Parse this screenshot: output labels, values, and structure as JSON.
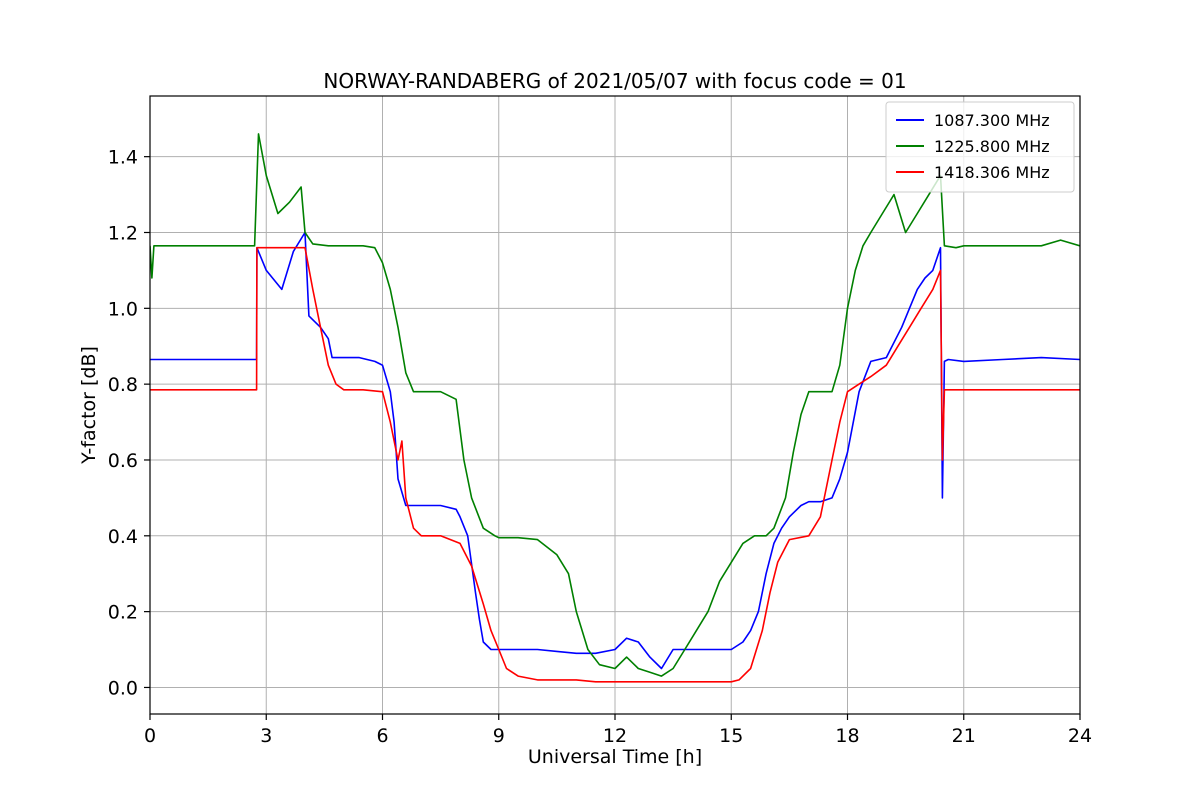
{
  "chart_data": {
    "type": "line",
    "title": "NORWAY-RANDABERG of 2021/05/07 with focus code = 01",
    "xlabel": "Universal Time [h]",
    "ylabel": "Y-factor [dB]",
    "xlim": [
      0,
      24
    ],
    "ylim": [
      -0.07,
      1.56
    ],
    "xticks": [
      0,
      3,
      6,
      9,
      12,
      15,
      18,
      21,
      24
    ],
    "xtick_labels": [
      "0",
      "3",
      "6",
      "9",
      "12",
      "15",
      "18",
      "21",
      "24"
    ],
    "yticks": [
      0.0,
      0.2,
      0.4,
      0.6,
      0.8,
      1.0,
      1.2,
      1.4
    ],
    "ytick_labels": [
      "0.0",
      "0.2",
      "0.4",
      "0.6",
      "0.8",
      "1.0",
      "1.2",
      "1.4"
    ],
    "grid": true,
    "legend_position": "top-right",
    "series": [
      {
        "name": "1087.300 MHz",
        "color": "#0000ff",
        "x": [
          0,
          2.75,
          2.76,
          3.0,
          3.4,
          3.7,
          4.0,
          4.1,
          4.4,
          4.6,
          4.7,
          5.0,
          5.4,
          5.8,
          6.0,
          6.2,
          6.3,
          6.4,
          6.6,
          6.7,
          7.0,
          7.5,
          7.9,
          8.0,
          8.2,
          8.4,
          8.5,
          8.6,
          8.8,
          9.0,
          9.5,
          10.0,
          10.5,
          11.0,
          11.5,
          12.0,
          12.3,
          12.6,
          12.9,
          13.2,
          13.5,
          14.0,
          14.5,
          15.0,
          15.3,
          15.5,
          15.7,
          15.9,
          16.1,
          16.3,
          16.5,
          16.8,
          17.0,
          17.3,
          17.6,
          17.8,
          18.0,
          18.3,
          18.6,
          19.0,
          19.4,
          19.6,
          19.8,
          20.0,
          20.2,
          20.4,
          20.45,
          20.5,
          20.6,
          21.0,
          22.0,
          23.0,
          24.0
        ],
        "y": [
          0.865,
          0.865,
          1.16,
          1.1,
          1.05,
          1.15,
          1.2,
          0.98,
          0.95,
          0.92,
          0.87,
          0.87,
          0.87,
          0.86,
          0.85,
          0.78,
          0.7,
          0.55,
          0.48,
          0.48,
          0.48,
          0.48,
          0.47,
          0.45,
          0.4,
          0.25,
          0.18,
          0.12,
          0.1,
          0.1,
          0.1,
          0.1,
          0.095,
          0.09,
          0.09,
          0.1,
          0.13,
          0.12,
          0.08,
          0.05,
          0.1,
          0.1,
          0.1,
          0.1,
          0.12,
          0.15,
          0.2,
          0.3,
          0.38,
          0.42,
          0.45,
          0.48,
          0.49,
          0.49,
          0.5,
          0.55,
          0.62,
          0.78,
          0.86,
          0.87,
          0.95,
          1.0,
          1.05,
          1.08,
          1.1,
          1.16,
          0.5,
          0.86,
          0.865,
          0.86,
          0.865,
          0.87,
          0.865
        ]
      },
      {
        "name": "1225.800 MHz",
        "color": "#008000",
        "x": [
          0,
          0.05,
          0.1,
          1.0,
          2.0,
          2.7,
          2.8,
          3.0,
          3.3,
          3.6,
          3.9,
          4.0,
          4.2,
          4.6,
          5.0,
          5.5,
          5.8,
          6.0,
          6.2,
          6.4,
          6.6,
          6.8,
          7.0,
          7.5,
          7.9,
          8.1,
          8.3,
          8.6,
          8.9,
          9.0,
          9.5,
          10.0,
          10.5,
          10.8,
          11.0,
          11.3,
          11.6,
          12.0,
          12.3,
          12.6,
          12.9,
          13.2,
          13.5,
          13.8,
          14.1,
          14.4,
          14.7,
          15.0,
          15.3,
          15.6,
          15.9,
          16.1,
          16.4,
          16.6,
          16.8,
          17.0,
          17.3,
          17.6,
          17.8,
          18.0,
          18.2,
          18.4,
          18.6,
          18.9,
          19.2,
          19.5,
          19.8,
          20.1,
          20.4,
          20.5,
          20.8,
          21.0,
          22.0,
          23.0,
          23.5,
          24.0
        ],
        "y": [
          1.165,
          1.08,
          1.165,
          1.165,
          1.165,
          1.165,
          1.46,
          1.35,
          1.25,
          1.28,
          1.32,
          1.2,
          1.17,
          1.165,
          1.165,
          1.165,
          1.16,
          1.12,
          1.05,
          0.95,
          0.83,
          0.78,
          0.78,
          0.78,
          0.76,
          0.6,
          0.5,
          0.42,
          0.4,
          0.395,
          0.395,
          0.39,
          0.35,
          0.3,
          0.2,
          0.1,
          0.06,
          0.05,
          0.08,
          0.05,
          0.04,
          0.03,
          0.05,
          0.1,
          0.15,
          0.2,
          0.28,
          0.33,
          0.38,
          0.4,
          0.4,
          0.42,
          0.5,
          0.62,
          0.72,
          0.78,
          0.78,
          0.78,
          0.85,
          1.0,
          1.1,
          1.165,
          1.2,
          1.25,
          1.3,
          1.2,
          1.25,
          1.3,
          1.35,
          1.165,
          1.16,
          1.165,
          1.165,
          1.165,
          1.18,
          1.165
        ]
      },
      {
        "name": "1418.306 MHz",
        "color": "#ff0000",
        "x": [
          0,
          2.75,
          2.76,
          3.0,
          3.5,
          4.0,
          4.2,
          4.4,
          4.6,
          4.8,
          5.0,
          5.5,
          6.0,
          6.2,
          6.4,
          6.5,
          6.6,
          6.8,
          7.0,
          7.5,
          8.0,
          8.3,
          8.6,
          8.8,
          9.0,
          9.2,
          9.5,
          10.0,
          10.5,
          11.0,
          11.5,
          12.0,
          12.5,
          13.0,
          13.5,
          14.0,
          14.5,
          15.0,
          15.2,
          15.5,
          15.8,
          16.0,
          16.2,
          16.5,
          17.0,
          17.3,
          17.6,
          17.8,
          18.0,
          18.3,
          18.6,
          19.0,
          19.3,
          19.6,
          19.9,
          20.2,
          20.4,
          20.45,
          20.5,
          20.6,
          21.0,
          22.0,
          23.0,
          24.0
        ],
        "y": [
          0.785,
          0.785,
          1.16,
          1.16,
          1.16,
          1.16,
          1.05,
          0.95,
          0.85,
          0.8,
          0.785,
          0.785,
          0.78,
          0.7,
          0.6,
          0.65,
          0.5,
          0.42,
          0.4,
          0.4,
          0.38,
          0.32,
          0.22,
          0.15,
          0.1,
          0.05,
          0.03,
          0.02,
          0.02,
          0.02,
          0.015,
          0.015,
          0.015,
          0.015,
          0.015,
          0.015,
          0.015,
          0.015,
          0.02,
          0.05,
          0.15,
          0.25,
          0.33,
          0.39,
          0.4,
          0.45,
          0.6,
          0.7,
          0.78,
          0.8,
          0.82,
          0.85,
          0.9,
          0.95,
          1.0,
          1.05,
          1.1,
          0.6,
          0.785,
          0.785,
          0.785,
          0.785,
          0.785,
          0.785
        ]
      }
    ]
  }
}
